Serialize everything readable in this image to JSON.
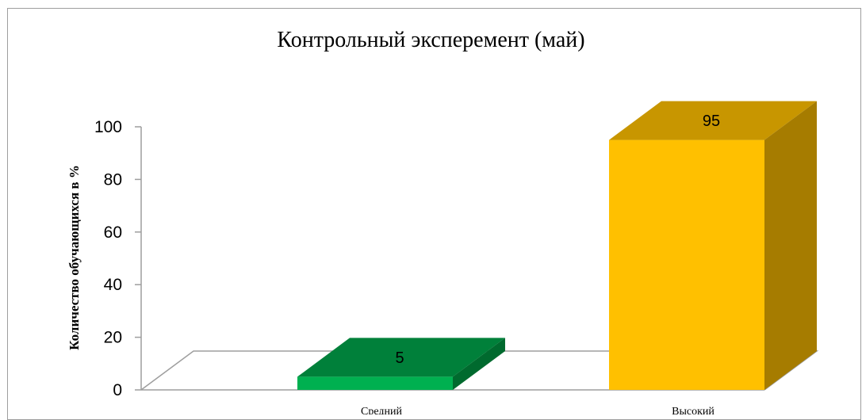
{
  "chart_data": {
    "type": "bar",
    "title": "Контрольный эксперемент (май)",
    "ylabel": "Количество обучающихся в %",
    "xlabel": "",
    "categories": [
      "Средний",
      "Высокий"
    ],
    "values": [
      5,
      95
    ],
    "ylim": [
      0,
      100
    ],
    "yticks": [
      0,
      20,
      40,
      60,
      80,
      100
    ],
    "style": "3d-column",
    "grid": false,
    "legend": "none",
    "colors": {
      "bar_front": [
        "#00b050",
        "#ffc000"
      ],
      "bar_top": [
        "#00803a",
        "#c89600"
      ],
      "bar_side": [
        "#006a2e",
        "#a67c00"
      ],
      "axis": "#9e9e9e"
    }
  }
}
